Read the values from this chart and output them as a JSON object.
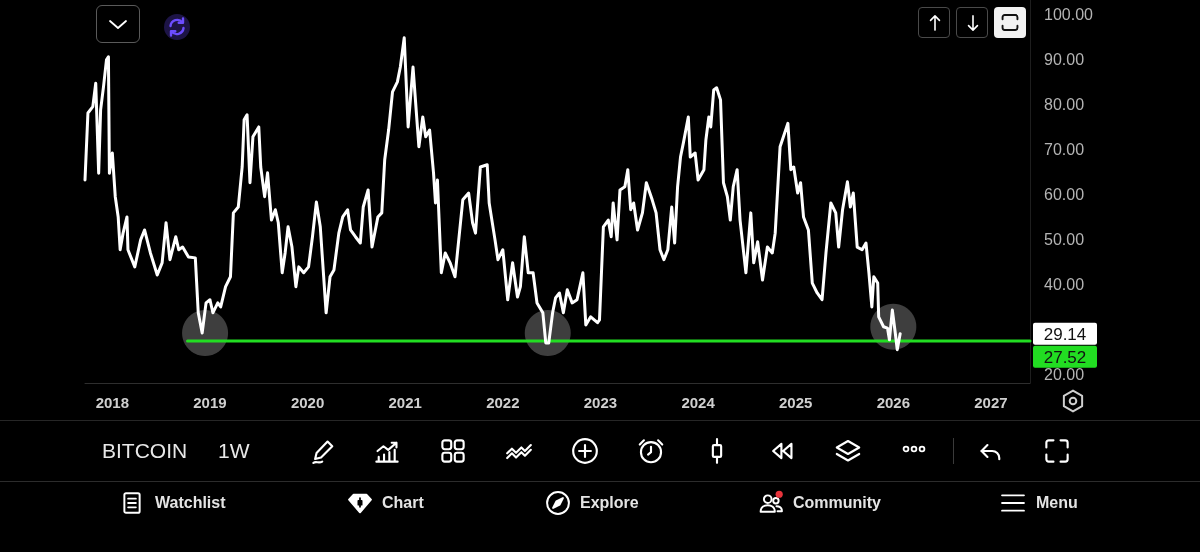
{
  "chart_data": {
    "type": "line",
    "title": "BITCOIN",
    "subtitle": "1W",
    "annotations": [
      "29.14",
      "Watchlist",
      "Chart",
      "Explore",
      "Community",
      "Menu"
    ],
    "xlim": [
      2017.72,
      2027.4
    ],
    "xticks": [
      2018,
      2019,
      2020,
      2021,
      2022,
      2023,
      2024,
      2025,
      2026,
      2027
    ],
    "ylim": [
      18.2,
      103.3
    ],
    "yticks": [
      {
        "value": 20,
        "label": "20.00"
      },
      {
        "value": 40,
        "label": "40.00"
      },
      {
        "value": 50,
        "label": "50.00"
      },
      {
        "value": 60,
        "label": "60.00"
      },
      {
        "value": 70,
        "label": "70.00"
      },
      {
        "value": 80,
        "label": "80.00"
      },
      {
        "value": 90,
        "label": "90.00"
      },
      {
        "value": 100,
        "label": "100.00"
      }
    ],
    "grid": false,
    "marker": "none",
    "series": [
      {
        "color": "#ffffff",
        "x": [
          2017.72,
          2017.75,
          2017.8,
          2017.83,
          2017.86,
          2017.88,
          2017.91,
          2017.94,
          2017.96,
          2017.97,
          2018.0,
          2018.03,
          2018.06,
          2018.08,
          2018.11,
          2018.15,
          2018.16,
          2018.23,
          2018.29,
          2018.33,
          2018.39,
          2018.46,
          2018.51,
          2018.55,
          2018.59,
          2018.65,
          2018.68,
          2018.72,
          2018.78,
          2018.85,
          2018.88,
          2018.92,
          2018.96,
          2019.0,
          2019.03,
          2019.08,
          2019.11,
          2019.16,
          2019.21,
          2019.24,
          2019.29,
          2019.33,
          2019.35,
          2019.38,
          2019.41,
          2019.44,
          2019.5,
          2019.52,
          2019.56,
          2019.59,
          2019.63,
          2019.67,
          2019.7,
          2019.74,
          2019.77,
          2019.8,
          2019.84,
          2019.88,
          2019.91,
          2019.96,
          2020.01,
          2020.05,
          2020.09,
          2020.13,
          2020.19,
          2020.23,
          2020.27,
          2020.32,
          2020.36,
          2020.41,
          2020.44,
          2020.49,
          2020.54,
          2020.57,
          2020.62,
          2020.66,
          2020.72,
          2020.76,
          2020.79,
          2020.83,
          2020.87,
          2020.92,
          2020.95,
          2020.99,
          2021.03,
          2021.08,
          2021.14,
          2021.18,
          2021.21,
          2021.25,
          2021.29,
          2021.31,
          2021.33,
          2021.37,
          2021.41,
          2021.46,
          2021.51,
          2021.59,
          2021.65,
          2021.69,
          2021.72,
          2021.77,
          2021.84,
          2021.86,
          2021.92,
          2021.95,
          2022.0,
          2022.05,
          2022.1,
          2022.15,
          2022.18,
          2022.22,
          2022.26,
          2022.31,
          2022.35,
          2022.41,
          2022.44,
          2022.47,
          2022.51,
          2022.54,
          2022.58,
          2022.62,
          2022.66,
          2022.71,
          2022.76,
          2022.82,
          2022.85,
          2022.9,
          2022.97,
          2022.99,
          2023.03,
          2023.08,
          2023.11,
          2023.13,
          2023.17,
          2023.2,
          2023.25,
          2023.28,
          2023.31,
          2023.34,
          2023.38,
          2023.43,
          2023.47,
          2023.53,
          2023.57,
          2023.61,
          2023.65,
          2023.69,
          2023.73,
          2023.76,
          2023.79,
          2023.82,
          2023.85,
          2023.9,
          2023.92,
          2023.97,
          2024.0,
          2024.06,
          2024.08,
          2024.11,
          2024.13,
          2024.16,
          2024.19,
          2024.23,
          2024.26,
          2024.3,
          2024.33,
          2024.36,
          2024.4,
          2024.43,
          2024.49,
          2024.54,
          2024.57,
          2024.61,
          2024.66,
          2024.71,
          2024.76,
          2024.79,
          2024.84,
          2024.92,
          2024.95,
          2024.98,
          2025.02,
          2025.05,
          2025.08,
          2025.13,
          2025.17,
          2025.22,
          2025.27,
          2025.31,
          2025.36,
          2025.41,
          2025.44,
          2025.48,
          2025.53,
          2025.56,
          2025.59,
          2025.63,
          2025.68,
          2025.72,
          2025.75,
          2025.78,
          2025.8,
          2025.84,
          2025.85,
          2025.9,
          2025.94,
          2025.96,
          2025.99,
          2026.02,
          2026.04,
          2026.07
        ],
        "values": [
          63.3,
          78.2,
          79.6,
          84.8,
          64.8,
          78.9,
          84.1,
          90.0,
          90.7,
          64.8,
          69.3,
          59.6,
          55.1,
          47.8,
          51.5,
          55.1,
          47.8,
          44.0,
          50.0,
          52.2,
          47.1,
          42.2,
          44.9,
          53.8,
          45.6,
          50.7,
          47.8,
          48.4,
          46.2,
          46.0,
          33.8,
          29.3,
          36.0,
          36.7,
          33.8,
          36.0,
          35.1,
          39.6,
          41.8,
          56.0,
          57.3,
          66.2,
          76.7,
          77.8,
          62.7,
          72.9,
          75.1,
          66.2,
          59.6,
          64.9,
          54.4,
          56.7,
          53.8,
          42.7,
          47.1,
          52.9,
          48.4,
          39.6,
          44.0,
          42.7,
          44.0,
          50.7,
          58.4,
          52.9,
          33.8,
          41.8,
          43.3,
          51.5,
          55.1,
          56.7,
          52.2,
          50.7,
          49.3,
          57.3,
          61.1,
          48.4,
          55.1,
          56.0,
          67.8,
          74.4,
          82.9,
          85.1,
          88.4,
          94.9,
          75.1,
          88.4,
          70.7,
          77.3,
          72.9,
          74.4,
          64.9,
          58.2,
          63.3,
          42.7,
          47.1,
          44.9,
          41.8,
          58.9,
          60.4,
          53.8,
          51.5,
          66.2,
          66.7,
          58.2,
          50.0,
          45.6,
          47.8,
          36.7,
          44.9,
          37.3,
          39.6,
          50.7,
          42.7,
          42.7,
          36.0,
          33.8,
          27.1,
          27.1,
          33.8,
          37.1,
          38.2,
          33.8,
          38.9,
          36.0,
          36.7,
          42.7,
          31.1,
          32.9,
          31.6,
          32.2,
          52.9,
          54.4,
          50.7,
          58.2,
          50.0,
          61.1,
          61.8,
          65.6,
          56.7,
          58.2,
          52.2,
          56.0,
          62.7,
          58.9,
          56.0,
          47.8,
          45.6,
          47.8,
          57.3,
          49.3,
          61.8,
          68.4,
          71.6,
          77.3,
          68.4,
          69.3,
          63.3,
          65.6,
          72.2,
          77.3,
          75.1,
          83.3,
          83.8,
          81.1,
          62.7,
          59.6,
          54.4,
          61.8,
          65.6,
          54.4,
          42.7,
          56.0,
          44.9,
          49.6,
          41.1,
          48.4,
          47.1,
          51.5,
          70.7,
          75.9,
          65.6,
          66.2,
          60.4,
          62.7,
          55.1,
          52.2,
          40.4,
          38.2,
          36.7,
          47.1,
          58.2,
          56.0,
          48.4,
          56.7,
          62.9,
          57.3,
          60.4,
          48.4,
          47.8,
          49.3,
          42.7,
          35.1,
          41.8,
          40.4,
          32.9,
          30.7,
          30.4,
          27.8,
          34.4,
          29.3,
          25.6,
          29.14
        ]
      },
      {
        "color": "#22dd22",
        "x": [
          2018.77,
          2027.4
        ],
        "values": [
          27.52,
          27.52
        ],
        "value_labels": [
          null,
          "27.52"
        ]
      },
      {
        "type": "scatter",
        "color": "#4d4d4d",
        "marker": "circle",
        "x": [
          2018.95,
          2022.46,
          2026.0
        ],
        "values": [
          29.3,
          29.3,
          30.7
        ]
      }
    ]
  }
}
